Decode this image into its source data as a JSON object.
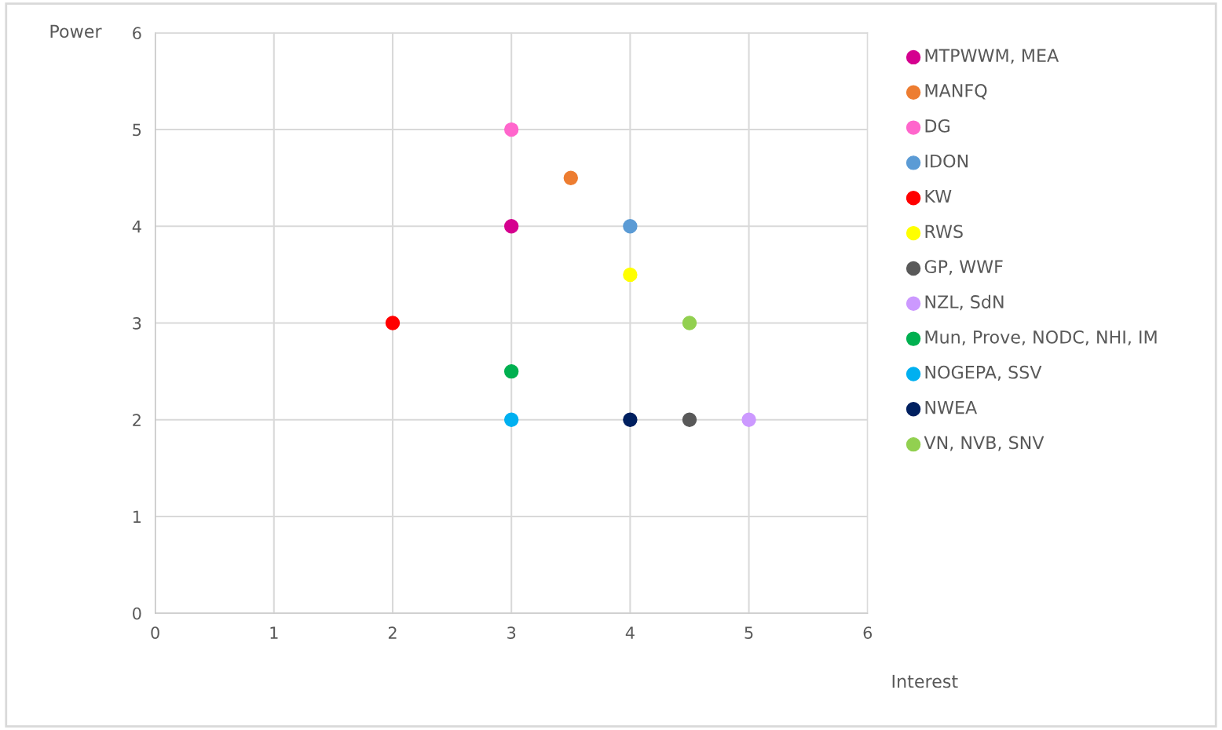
{
  "chart_data": {
    "type": "scatter",
    "xlabel": "Interest",
    "ylabel": "Power",
    "xlim": [
      0,
      6
    ],
    "ylim": [
      0,
      6
    ],
    "xticks": [
      0,
      1,
      2,
      3,
      4,
      5,
      6
    ],
    "yticks": [
      0,
      1,
      2,
      3,
      4,
      5,
      6
    ],
    "grid": true,
    "legend": "right",
    "marker": "circle",
    "series": [
      {
        "name": "MTPWWM, MEA",
        "color": "#d5008f",
        "x": [
          3
        ],
        "values": [
          4
        ]
      },
      {
        "name": "MANFQ",
        "color": "#ed7d31",
        "x": [
          3.5
        ],
        "values": [
          4.5
        ]
      },
      {
        "name": "DG",
        "color": "#ff66cc",
        "x": [
          3
        ],
        "values": [
          5
        ]
      },
      {
        "name": "IDON",
        "color": "#5b9bd5",
        "x": [
          4
        ],
        "values": [
          4
        ]
      },
      {
        "name": "KW",
        "color": "#ff0000",
        "x": [
          2
        ],
        "values": [
          3
        ]
      },
      {
        "name": "RWS",
        "color": "#ffff00",
        "x": [
          4
        ],
        "values": [
          3.5
        ]
      },
      {
        "name": "GP, WWF",
        "color": "#595959",
        "x": [
          4.5
        ],
        "values": [
          2
        ]
      },
      {
        "name": "NZL, SdN",
        "color": "#cc99ff",
        "x": [
          5
        ],
        "values": [
          2
        ]
      },
      {
        "name": "Mun, Prove, NODC, NHI, IM",
        "color": "#00b050",
        "x": [
          3
        ],
        "values": [
          2.5
        ]
      },
      {
        "name": "NOGEPA, SSV",
        "color": "#00b0f0",
        "x": [
          3
        ],
        "values": [
          2
        ]
      },
      {
        "name": "NWEA",
        "color": "#002060",
        "x": [
          4
        ],
        "values": [
          2
        ]
      },
      {
        "name": "VN, NVB, SNV",
        "color": "#92d050",
        "x": [
          4.5
        ],
        "values": [
          3
        ]
      }
    ]
  }
}
